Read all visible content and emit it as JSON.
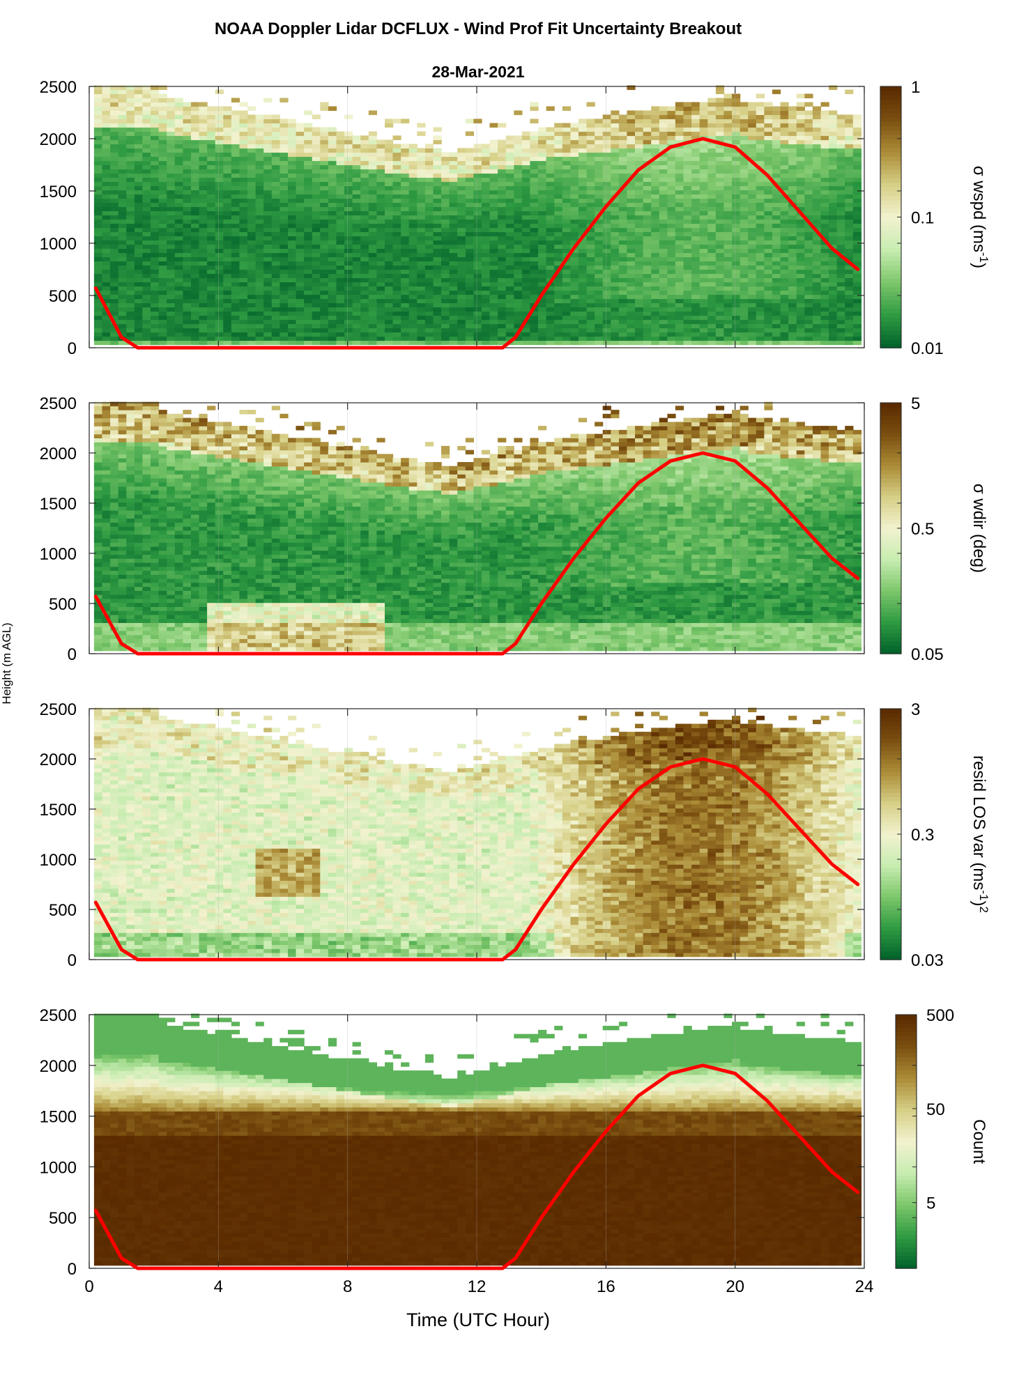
{
  "figure": {
    "title": "NOAA Doppler Lidar DCFLUX - Wind Prof Fit Uncertainty Breakout",
    "date_title": "28-Mar-2021",
    "xlabel": "Time (UTC Hour)",
    "ylabel": "Height (m AGL)"
  },
  "colors": {
    "sun_line": "#ff0000",
    "colormap": [
      "#00602a",
      "#2e9a42",
      "#7cc66a",
      "#c6ecb0",
      "#f2f2cf",
      "#d6cf86",
      "#ab8c37",
      "#7a4f10",
      "#5a2a00"
    ]
  },
  "chart_data": [
    {
      "type": "heatmap",
      "name": "sigma_wspd",
      "xlabel": "Time (UTC Hour)",
      "ylabel": "Height (m AGL)",
      "xlim": [
        0,
        24
      ],
      "ylim": [
        0,
        2500
      ],
      "x_ticks": [
        0,
        4,
        8,
        12,
        16,
        20,
        24
      ],
      "y_ticks": [
        0,
        500,
        1000,
        1500,
        2000,
        2500
      ],
      "colorbar": {
        "label_parts": [
          "σ wspd (ms",
          "-1",
          ")"
        ],
        "scale": "log",
        "range": [
          0.01,
          1
        ],
        "tick_values": [
          0.01,
          0.1,
          1
        ],
        "tick_labels": [
          "0.01",
          "0.1",
          "1"
        ]
      },
      "field_description": "mostly green (0.01–0.1) below ~1500 m, lighter near data-top, sparse tan/brown pixels above ~2000 m"
    },
    {
      "type": "heatmap",
      "name": "sigma_wdir",
      "xlabel": "Time (UTC Hour)",
      "ylabel": "Height (m AGL)",
      "xlim": [
        0,
        24
      ],
      "ylim": [
        0,
        2500
      ],
      "x_ticks": [
        0,
        4,
        8,
        12,
        16,
        20,
        24
      ],
      "y_ticks": [
        0,
        500,
        1000,
        1500,
        2000,
        2500
      ],
      "colorbar": {
        "label_parts": [
          "σ wdir (deg)"
        ],
        "scale": "log",
        "range": [
          0.05,
          5
        ],
        "tick_values": [
          0.05,
          0.5,
          5
        ],
        "tick_labels": [
          "0.05",
          "0.5",
          "5"
        ]
      },
      "field_description": "green mid-levels, light/tan near surface 4–8 UTC, lighter upper edge"
    },
    {
      "type": "heatmap",
      "name": "resid_los_var",
      "xlabel": "Time (UTC Hour)",
      "ylabel": "Height (m AGL)",
      "xlim": [
        0,
        24
      ],
      "ylim": [
        0,
        2500
      ],
      "x_ticks": [
        0,
        4,
        8,
        12,
        16,
        20,
        24
      ],
      "y_ticks": [
        0,
        500,
        1000,
        1500,
        2000,
        2500
      ],
      "colorbar": {
        "label_parts": [
          "resid LOS var (ms",
          "-1",
          ")",
          "2"
        ],
        "scale": "log",
        "range": [
          0.03,
          3
        ],
        "tick_values": [
          0.03,
          0.3,
          3
        ],
        "tick_labels": [
          "0.03",
          "0.3",
          "3"
        ]
      },
      "field_description": "light yellow/green nighttime, brown columns during daytime 16–24 UTC"
    },
    {
      "type": "heatmap",
      "name": "count",
      "xlabel": "Time (UTC Hour)",
      "ylabel": "Height (m AGL)",
      "xlim": [
        0,
        24
      ],
      "ylim": [
        0,
        2500
      ],
      "x_ticks": [
        0,
        4,
        8,
        12,
        16,
        20,
        24
      ],
      "y_ticks": [
        0,
        500,
        1000,
        1500,
        2000,
        2500
      ],
      "colorbar": {
        "label_parts": [
          "Count"
        ],
        "scale": "log",
        "range": [
          1,
          500
        ],
        "tick_values": [
          5,
          50,
          500
        ],
        "tick_labels": [
          "5",
          "50",
          "500"
        ]
      },
      "field_description": "saturated dark brown (~500) below ~1300 m, fading to light green above 1700 m"
    }
  ],
  "sun_elevation_curve": {
    "x": [
      0.2,
      1.0,
      1.5,
      12.8,
      13.2,
      14.0,
      15.0,
      16.0,
      17.0,
      18.0,
      19.0,
      20.0,
      21.0,
      22.0,
      23.0,
      23.8
    ],
    "y": [
      570,
      100,
      0,
      0,
      100,
      500,
      950,
      1350,
      1700,
      1920,
      2000,
      1920,
      1650,
      1300,
      950,
      750
    ]
  }
}
